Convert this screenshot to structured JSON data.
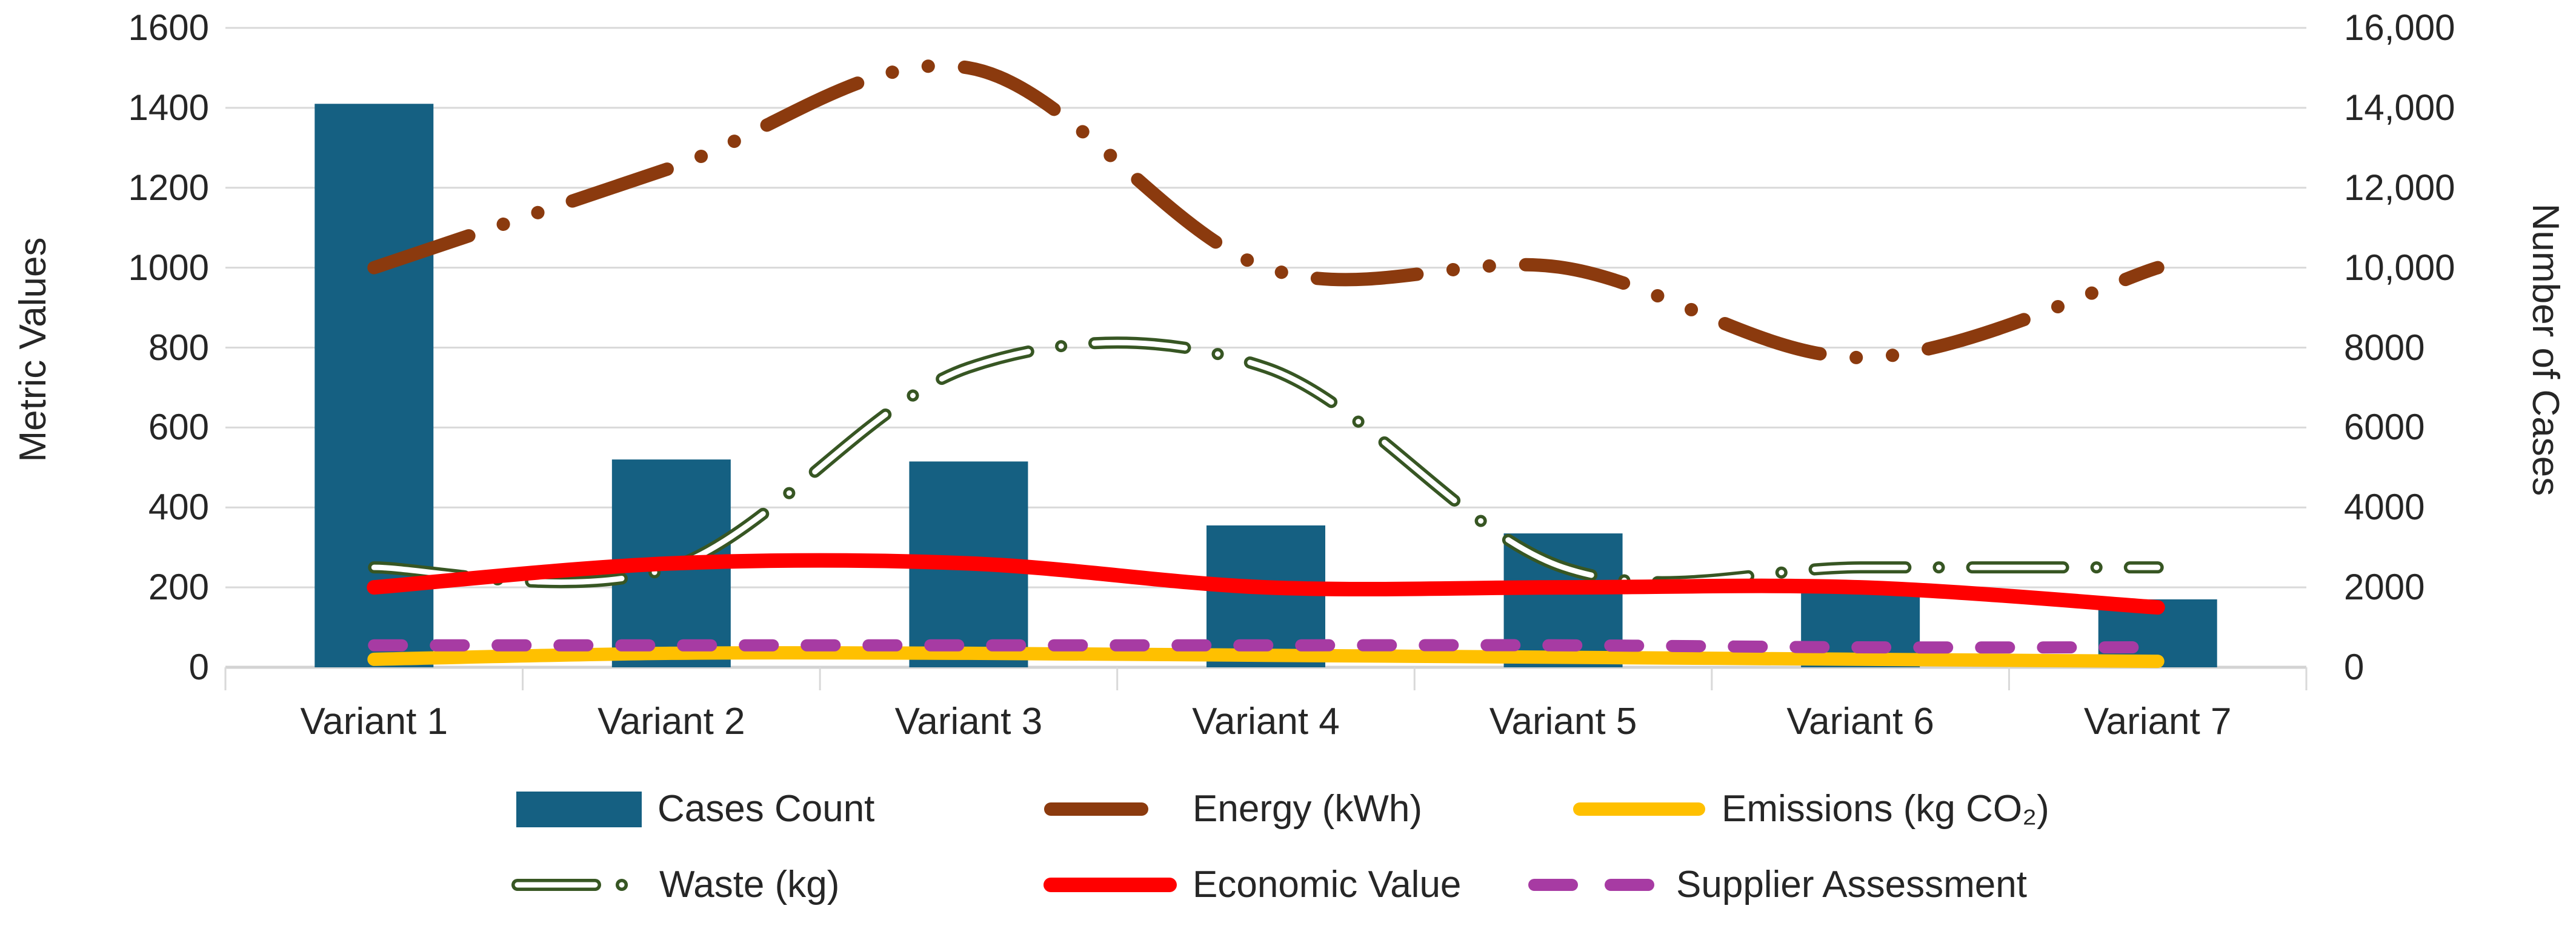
{
  "chart_data": {
    "type": "combo-bar-line",
    "title": "",
    "categories": [
      "Variant 1",
      "Variant 2",
      "Variant 3",
      "Variant 4",
      "Variant 5",
      "Variant 6",
      "Variant 7"
    ],
    "left_axis": {
      "title": "Metric Values",
      "min": 0,
      "max": 1600,
      "step": 200,
      "tick_labels": [
        "0",
        "200",
        "400",
        "600",
        "800",
        "1000",
        "1200",
        "1400",
        "1600"
      ]
    },
    "right_axis": {
      "title": "Number of Cases",
      "min": 0,
      "max": 16000,
      "step": 2000,
      "tick_labels": [
        "0",
        "2000",
        "4000",
        "6000",
        "8000",
        "10,000",
        "12,000",
        "14,000",
        "16,000"
      ]
    },
    "grid": true,
    "legend_position": "bottom-two-rows",
    "colors": {
      "gridline": "#D9D9D9",
      "axis_line": "#D3D3D3",
      "text": "#262626",
      "background": "#FFFFFF"
    },
    "series": [
      {
        "name": "Cases Count",
        "type": "bar",
        "axis": "right",
        "color": "#156082",
        "values": [
          14100,
          5200,
          5150,
          3550,
          3350,
          1850,
          1700
        ]
      },
      {
        "name": "Energy (kWh)",
        "type": "line",
        "axis": "left",
        "style": "long-dash-dot-dot",
        "color": "#8B3A0E",
        "values": [
          1000,
          1250,
          1500,
          1000,
          1000,
          775,
          1000
        ]
      },
      {
        "name": "Emissions (kg CO₂)",
        "type": "line",
        "axis": "left",
        "style": "solid",
        "color": "#FFC000",
        "values": [
          20,
          35,
          35,
          30,
          25,
          20,
          15
        ]
      },
      {
        "name": "Waste (kg)",
        "type": "line",
        "axis": "left",
        "style": "hollow-long-dash-dot",
        "color": "#375623",
        "values": [
          250,
          250,
          750,
          750,
          250,
          250,
          250
        ]
      },
      {
        "name": "Economic Value",
        "type": "line",
        "axis": "left",
        "style": "solid",
        "color": "#FF0000",
        "values": [
          200,
          260,
          260,
          200,
          200,
          200,
          150
        ]
      },
      {
        "name": "Supplier Assessment",
        "type": "line",
        "axis": "left",
        "style": "dash",
        "color": "#A73BA3",
        "values": [
          55,
          55,
          55,
          55,
          55,
          50,
          50
        ]
      }
    ],
    "legend_rows": [
      [
        "Cases Count",
        "Energy (kWh)",
        "Emissions (kg CO₂)"
      ],
      [
        "Waste (kg)",
        "Economic Value",
        "Supplier Assessment"
      ]
    ]
  }
}
